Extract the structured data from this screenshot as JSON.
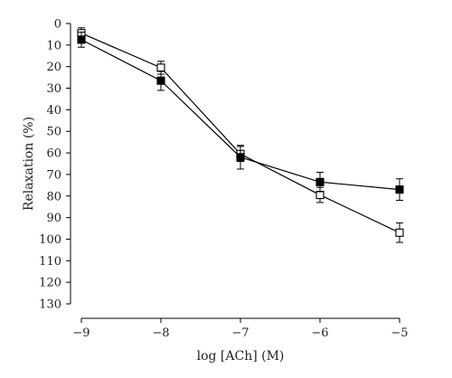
{
  "chart_data": {
    "type": "line",
    "xlabel": "log [ACh] (M)",
    "ylabel": "Relaxation (%)",
    "x": [
      -9,
      -8,
      -7,
      -6,
      -5
    ],
    "x_tick_labels": [
      "−9",
      "−8",
      "−7",
      "−6",
      "−5"
    ],
    "xlim": [
      -9,
      -5
    ],
    "ylim": [
      0,
      130
    ],
    "y_inverted": true,
    "y_ticks": [
      0,
      10,
      20,
      30,
      40,
      50,
      60,
      70,
      80,
      90,
      100,
      110,
      120,
      130
    ],
    "grid": false,
    "series": [
      {
        "marker": "filled-square",
        "color": "#000000",
        "values": [
          7.5,
          26.5,
          62,
          73.5,
          77
        ],
        "error": [
          3.5,
          4.5,
          5.5,
          4.5,
          5
        ]
      },
      {
        "marker": "open-square",
        "color": "#000000",
        "values": [
          4.5,
          20.5,
          60.5,
          79.5,
          97
        ],
        "error": [
          2.5,
          3,
          3.5,
          3.5,
          4.5
        ]
      }
    ]
  }
}
